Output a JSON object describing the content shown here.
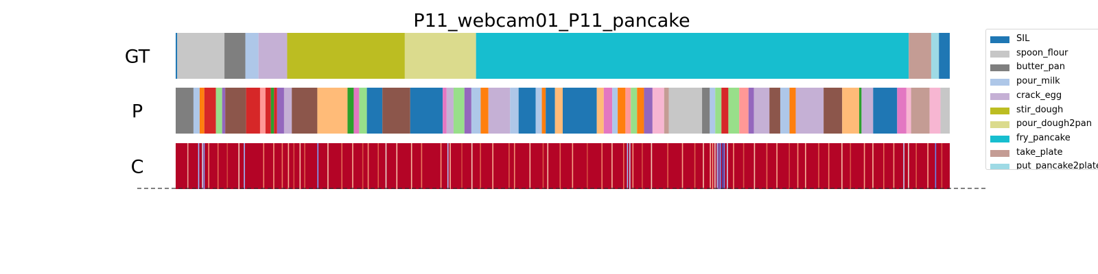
{
  "chart_data": {
    "type": "heatmap",
    "title": "P11_webcam01_P11_pancake",
    "x_range": [
      0,
      100
    ],
    "colors": {
      "SIL": "#1f77b4",
      "spoon_flour": "#c7c7c7",
      "butter_pan": "#7f7f7f",
      "pour_milk": "#aec7e8",
      "crack_egg": "#c5b0d5",
      "stir_dough": "#bcbd22",
      "pour_dough2pan": "#dbdb8d",
      "fry_pancake": "#17becf",
      "take_plate": "#c49c94",
      "put_pancake2plate": "#9edae5",
      "other_1": "#d62728",
      "other_2": "#8c564b",
      "other_3": "#ffbb78",
      "other_4": "#2ca02c",
      "other_5": "#98df8a",
      "other_6": "#e377c2",
      "other_7": "#9467bd",
      "other_8": "#ff7f0e",
      "other_9": "#ff9896",
      "other_10": "#f7b6d2"
    },
    "legend": [
      "SIL",
      "spoon_flour",
      "butter_pan",
      "pour_milk",
      "crack_egg",
      "stir_dough",
      "pour_dough2pan",
      "fry_pancake",
      "take_plate",
      "put_pancake2plate"
    ],
    "rows": [
      {
        "label": "GT",
        "segments": [
          [
            "SIL",
            0,
            0.2
          ],
          [
            "spoon_flour",
            0.2,
            6.3
          ],
          [
            "butter_pan",
            6.3,
            9.0
          ],
          [
            "pour_milk",
            9.0,
            10.7
          ],
          [
            "crack_egg",
            10.7,
            14.4
          ],
          [
            "stir_dough",
            14.4,
            29.6
          ],
          [
            "pour_dough2pan",
            29.6,
            38.8
          ],
          [
            "fry_pancake",
            38.8,
            94.7
          ],
          [
            "take_plate",
            94.7,
            97.6
          ],
          [
            "put_pancake2plate",
            97.6,
            98.6
          ],
          [
            "SIL",
            98.6,
            100
          ]
        ]
      },
      {
        "label": "P",
        "segments": [
          [
            "butter_pan",
            0,
            2.3
          ],
          [
            "pour_milk",
            2.3,
            3.1
          ],
          [
            "other_8",
            3.1,
            3.7
          ],
          [
            "other_1",
            3.7,
            5.2
          ],
          [
            "other_5",
            5.2,
            6.0
          ],
          [
            "other_7",
            6.0,
            6.4
          ],
          [
            "other_2",
            6.4,
            9.1
          ],
          [
            "other_1",
            9.1,
            10.9
          ],
          [
            "other_9",
            10.9,
            11.6
          ],
          [
            "other_1",
            11.6,
            12.3
          ],
          [
            "other_4",
            12.3,
            12.7
          ],
          [
            "other_1",
            12.7,
            13.1
          ],
          [
            "other_7",
            13.1,
            14.0
          ],
          [
            "crack_egg",
            14.0,
            15.0
          ],
          [
            "other_2",
            15.0,
            18.3
          ],
          [
            "other_3",
            18.3,
            22.2
          ],
          [
            "other_4",
            22.2,
            23.0
          ],
          [
            "other_6",
            23.0,
            23.7
          ],
          [
            "other_5",
            23.7,
            24.7
          ],
          [
            "SIL",
            24.7,
            26.7
          ],
          [
            "other_2",
            26.7,
            30.3
          ],
          [
            "SIL",
            30.3,
            34.5
          ],
          [
            "other_6",
            34.5,
            35.0
          ],
          [
            "crack_egg",
            35.0,
            35.9
          ],
          [
            "other_5",
            35.9,
            37.3
          ],
          [
            "other_7",
            37.3,
            38.2
          ],
          [
            "pour_milk",
            38.2,
            39.4
          ],
          [
            "other_8",
            39.4,
            40.4
          ],
          [
            "crack_egg",
            40.4,
            43.2
          ],
          [
            "pour_milk",
            43.2,
            44.3
          ],
          [
            "SIL",
            44.3,
            46.5
          ],
          [
            "pour_milk",
            46.5,
            47.3
          ],
          [
            "other_8",
            47.3,
            47.8
          ],
          [
            "SIL",
            47.8,
            49.0
          ],
          [
            "other_3",
            49.0,
            50.0
          ],
          [
            "SIL",
            50.0,
            54.4
          ],
          [
            "other_3",
            54.4,
            55.3
          ],
          [
            "other_6",
            55.3,
            56.4
          ],
          [
            "pour_milk",
            56.4,
            57.1
          ],
          [
            "other_8",
            57.1,
            58.1
          ],
          [
            "other_9",
            58.1,
            58.8
          ],
          [
            "other_5",
            58.8,
            59.6
          ],
          [
            "other_8",
            59.6,
            60.5
          ],
          [
            "other_7",
            60.5,
            61.6
          ],
          [
            "other_10",
            61.6,
            63.1
          ],
          [
            "take_plate",
            63.1,
            63.7
          ],
          [
            "spoon_flour",
            63.7,
            68.0
          ],
          [
            "butter_pan",
            68.0,
            69.0
          ],
          [
            "pour_milk",
            69.0,
            69.7
          ],
          [
            "other_5",
            69.7,
            70.5
          ],
          [
            "other_1",
            70.5,
            71.4
          ],
          [
            "other_5",
            71.4,
            72.8
          ],
          [
            "other_9",
            72.8,
            74.0
          ],
          [
            "other_7",
            74.0,
            74.7
          ],
          [
            "crack_egg",
            74.7,
            76.7
          ],
          [
            "other_2",
            76.7,
            78.1
          ],
          [
            "pour_milk",
            78.1,
            79.3
          ],
          [
            "other_8",
            79.3,
            80.1
          ],
          [
            "crack_egg",
            80.1,
            83.7
          ],
          [
            "other_2",
            83.7,
            86.1
          ],
          [
            "other_3",
            86.1,
            88.3
          ],
          [
            "other_4",
            88.3,
            88.6
          ],
          [
            "crack_egg",
            88.6,
            90.1
          ],
          [
            "SIL",
            90.1,
            93.2
          ],
          [
            "other_6",
            93.2,
            94.4
          ],
          [
            "other_10",
            94.4,
            95.0
          ],
          [
            "take_plate",
            95.0,
            97.4
          ],
          [
            "other_10",
            97.4,
            98.8
          ],
          [
            "spoon_flour",
            98.8,
            100
          ]
        ]
      },
      {
        "label": "C",
        "base_color": "#b40426",
        "stripes": [
          [
            1.5,
            "#e8a293"
          ],
          [
            2.9,
            "#9abbff"
          ],
          [
            3.4,
            "#c9d7f0"
          ],
          [
            3.6,
            "#7b9ff9"
          ],
          [
            4.2,
            "#f18f71"
          ],
          [
            5.4,
            "#e36c55"
          ],
          [
            6.6,
            "#d0473d"
          ],
          [
            8.1,
            "#f2cbb7"
          ],
          [
            8.8,
            "#9abbff"
          ],
          [
            11.3,
            "#ee8468"
          ],
          [
            12.6,
            "#f49a7b"
          ],
          [
            13.7,
            "#e9785d"
          ],
          [
            14.5,
            "#f7ac8e"
          ],
          [
            15.2,
            "#d55042"
          ],
          [
            16.0,
            "#f6bfa6"
          ],
          [
            16.6,
            "#dc5d4a"
          ],
          [
            18.3,
            "#7da0f9"
          ],
          [
            19.6,
            "#f5c4ac"
          ],
          [
            21.4,
            "#e36c55"
          ],
          [
            22.8,
            "#f7b194"
          ],
          [
            24.1,
            "#d65244"
          ],
          [
            24.8,
            "#f39475"
          ],
          [
            26.1,
            "#dd5f4b"
          ],
          [
            27.1,
            "#e7d7ce"
          ],
          [
            28.5,
            "#f5c0a7"
          ],
          [
            30.4,
            "#f7ba9f"
          ],
          [
            31.7,
            "#e97a5f"
          ],
          [
            34.2,
            "#f4987a"
          ],
          [
            35.1,
            "#aac7fd"
          ],
          [
            35.4,
            "#f7b599"
          ],
          [
            36.9,
            "#d24b40"
          ],
          [
            38.2,
            "#f1cdba"
          ],
          [
            39.3,
            "#e0654f"
          ],
          [
            40.9,
            "#f7ad90"
          ],
          [
            43.0,
            "#dd5f4b"
          ],
          [
            43.7,
            "#f29072"
          ],
          [
            45.7,
            "#f7ba9f"
          ],
          [
            47.4,
            "#d85646"
          ],
          [
            48.0,
            "#f5c0a7"
          ],
          [
            49.6,
            "#e46e56"
          ],
          [
            51.2,
            "#f6a385"
          ],
          [
            53.1,
            "#d24b40"
          ],
          [
            55.0,
            "#ee8468"
          ],
          [
            56.3,
            "#f7b89c"
          ],
          [
            57.8,
            "#e67259"
          ],
          [
            58.3,
            "#9fbfff"
          ],
          [
            58.6,
            "#c0d4f5"
          ],
          [
            59.0,
            "#f4987a"
          ],
          [
            60.2,
            "#d65244"
          ],
          [
            61.4,
            "#f2cbb7"
          ],
          [
            63.5,
            "#e0654f"
          ],
          [
            65.4,
            "#f7a688"
          ],
          [
            67.0,
            "#dd5f4b"
          ],
          [
            68.1,
            "#f5c4ac"
          ],
          [
            69.0,
            "#f7b89c"
          ],
          [
            69.3,
            "#f6a385"
          ],
          [
            69.6,
            "#e9d5cb"
          ],
          [
            69.9,
            "#a5c3fe"
          ],
          [
            70.1,
            "#5f7fe8"
          ],
          [
            70.3,
            "#7396f5"
          ],
          [
            70.6,
            "#3b4cc0"
          ],
          [
            70.8,
            "#6788ee"
          ],
          [
            71.2,
            "#cad8ef"
          ],
          [
            72.0,
            "#f4987a"
          ],
          [
            73.3,
            "#d85646"
          ],
          [
            74.7,
            "#f6bfa6"
          ],
          [
            76.3,
            "#e46e56"
          ],
          [
            77.6,
            "#f7ac8e"
          ],
          [
            79.2,
            "#d24b40"
          ],
          [
            80.3,
            "#f39475"
          ],
          [
            81.3,
            "#f7b599"
          ],
          [
            83.0,
            "#e0654f"
          ],
          [
            84.3,
            "#ee8468"
          ],
          [
            86.0,
            "#f5c0a7"
          ],
          [
            87.1,
            "#d85646"
          ],
          [
            88.9,
            "#f6a385"
          ],
          [
            90.0,
            "#f7b89c"
          ],
          [
            91.4,
            "#e36c55"
          ],
          [
            92.7,
            "#f4987a"
          ],
          [
            94.0,
            "#c0d4f5"
          ],
          [
            94.6,
            "#e8d6cc"
          ],
          [
            95.6,
            "#dc5d4a"
          ],
          [
            97.1,
            "#f7ad90"
          ],
          [
            98.1,
            "#6788ee"
          ],
          [
            98.9,
            "#d65244"
          ]
        ]
      }
    ]
  }
}
